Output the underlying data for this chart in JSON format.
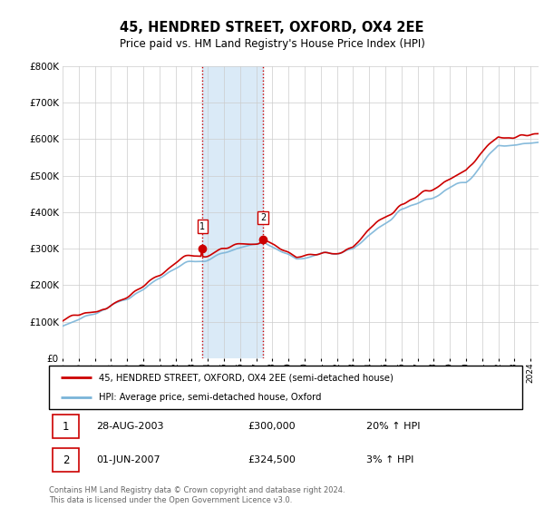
{
  "title": "45, HENDRED STREET, OXFORD, OX4 2EE",
  "subtitle": "Price paid vs. HM Land Registry's House Price Index (HPI)",
  "ylim": [
    0,
    800000
  ],
  "xlim_start": 1995.0,
  "xlim_end": 2024.5,
  "sale1_date": 2003.66,
  "sale1_price": 300000,
  "sale2_date": 2007.42,
  "sale2_price": 324500,
  "hpi_color": "#7ab4d8",
  "price_color": "#cc0000",
  "shade_color": "#daeaf7",
  "legend_label1": "45, HENDRED STREET, OXFORD, OX4 2EE (semi-detached house)",
  "legend_label2": "HPI: Average price, semi-detached house, Oxford",
  "footer": "Contains HM Land Registry data © Crown copyright and database right 2024.\nThis data is licensed under the Open Government Licence v3.0.",
  "table_rows": [
    {
      "num": "1",
      "date": "28-AUG-2003",
      "price": "£300,000",
      "pct": "20% ↑ HPI"
    },
    {
      "num": "2",
      "date": "01-JUN-2007",
      "price": "£324,500",
      "pct": "3% ↑ HPI"
    }
  ]
}
